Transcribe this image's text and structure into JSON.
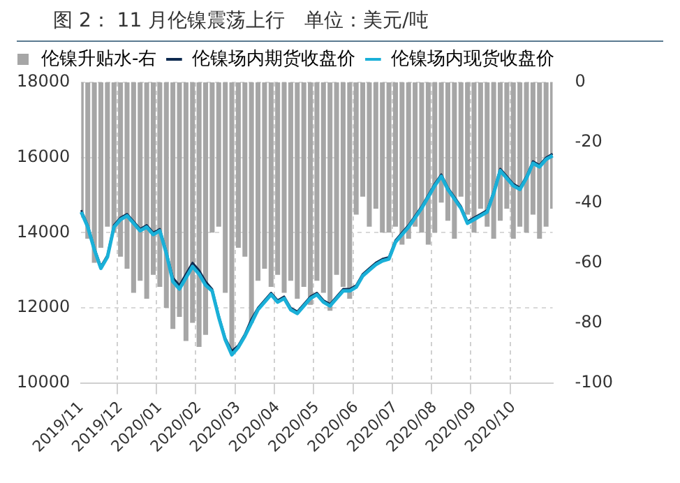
{
  "chart_data": {
    "type": "line",
    "title": "图 2： 11 月伦镍震荡上行　单位：美元/吨",
    "categories": [
      "2019/11",
      null,
      null,
      null,
      null,
      null,
      "2019/12",
      null,
      null,
      null,
      null,
      null,
      "2020/01",
      null,
      null,
      null,
      null,
      null,
      "2020/02",
      null,
      null,
      null,
      null,
      null,
      "2020/03",
      null,
      null,
      null,
      null,
      null,
      "2020/04",
      null,
      null,
      null,
      null,
      null,
      "2020/05",
      null,
      null,
      null,
      null,
      null,
      "2020/06",
      null,
      null,
      null,
      null,
      null,
      "2020/07",
      null,
      null,
      null,
      null,
      null,
      "2020/08",
      null,
      null,
      null,
      null,
      null,
      "2020/09",
      null,
      null,
      null,
      null,
      null,
      "2020/10",
      null,
      null,
      null,
      null,
      null,
      null
    ],
    "series": [
      {
        "name": "伦镍升贴水-右",
        "type": "bar",
        "axis": "y2",
        "color": "#a6a6a6",
        "values": [
          -45,
          -52,
          -60,
          -55,
          -48,
          -50,
          -58,
          -62,
          -70,
          -66,
          -72,
          -64,
          -68,
          -75,
          -82,
          -78,
          -86,
          -80,
          -88,
          -84,
          -50,
          -48,
          -70,
          -90,
          -55,
          -58,
          -80,
          -66,
          -62,
          -68,
          -64,
          -70,
          -66,
          -72,
          -68,
          -74,
          -66,
          -70,
          -76,
          -64,
          -68,
          -72,
          -44,
          -38,
          -48,
          -42,
          -50,
          -50,
          -48,
          -54,
          -52,
          -48,
          -50,
          -54,
          -50,
          -40,
          -46,
          -52,
          -38,
          -44,
          -50,
          -42,
          -48,
          -52,
          -46,
          -42,
          -52,
          -48,
          -50,
          -44,
          -52,
          -48,
          -42
        ]
      },
      {
        "name": "伦镍场内期货收盘价",
        "color": "#0d2a50",
        "values": [
          14600,
          14200,
          13600,
          13100,
          13400,
          14200,
          14400,
          14500,
          14300,
          14100,
          14200,
          14000,
          14100,
          13500,
          12800,
          12600,
          12900,
          13200,
          13000,
          12700,
          12500,
          11800,
          11200,
          10850,
          11000,
          11300,
          11700,
          12000,
          12200,
          12400,
          12200,
          12300,
          12000,
          11900,
          12100,
          12300,
          12400,
          12200,
          12100,
          12300,
          12500,
          12500,
          12600,
          12900,
          13050,
          13200,
          13300,
          13350,
          13800,
          14000,
          14200,
          14450,
          14700,
          15000,
          15300,
          15550,
          15200,
          14950,
          14700,
          14300,
          14400,
          14500,
          14600,
          15100,
          15700,
          15500,
          15300,
          15200,
          15500,
          15900,
          15800,
          16000,
          16100
        ]
      },
      {
        "name": "伦镍场内现货收盘价",
        "color": "#1ab0d8",
        "values": [
          14550,
          14150,
          13550,
          13050,
          13350,
          14150,
          14350,
          14450,
          14250,
          14050,
          14150,
          13950,
          14050,
          13450,
          12700,
          12500,
          12800,
          13100,
          12900,
          12600,
          12450,
          11750,
          11150,
          10750,
          10950,
          11250,
          11600,
          11950,
          12150,
          12350,
          12150,
          12250,
          11950,
          11850,
          12050,
          12250,
          12350,
          12150,
          12050,
          12250,
          12450,
          12450,
          12550,
          12850,
          13000,
          13150,
          13250,
          13300,
          13750,
          13950,
          14150,
          14400,
          14650,
          14950,
          15250,
          15500,
          15150,
          14900,
          14650,
          14250,
          14350,
          14450,
          14550,
          15050,
          15650,
          15450,
          15250,
          15150,
          15450,
          15850,
          15750,
          15950,
          16050
        ]
      }
    ],
    "ylim": [
      10000,
      18000
    ],
    "yticks": [
      10000,
      12000,
      14000,
      16000,
      18000
    ],
    "y2lim": [
      -100,
      0
    ],
    "y2ticks": [
      -100,
      -80,
      -60,
      -40,
      -20,
      0
    ],
    "grid": true,
    "legend": "top"
  }
}
